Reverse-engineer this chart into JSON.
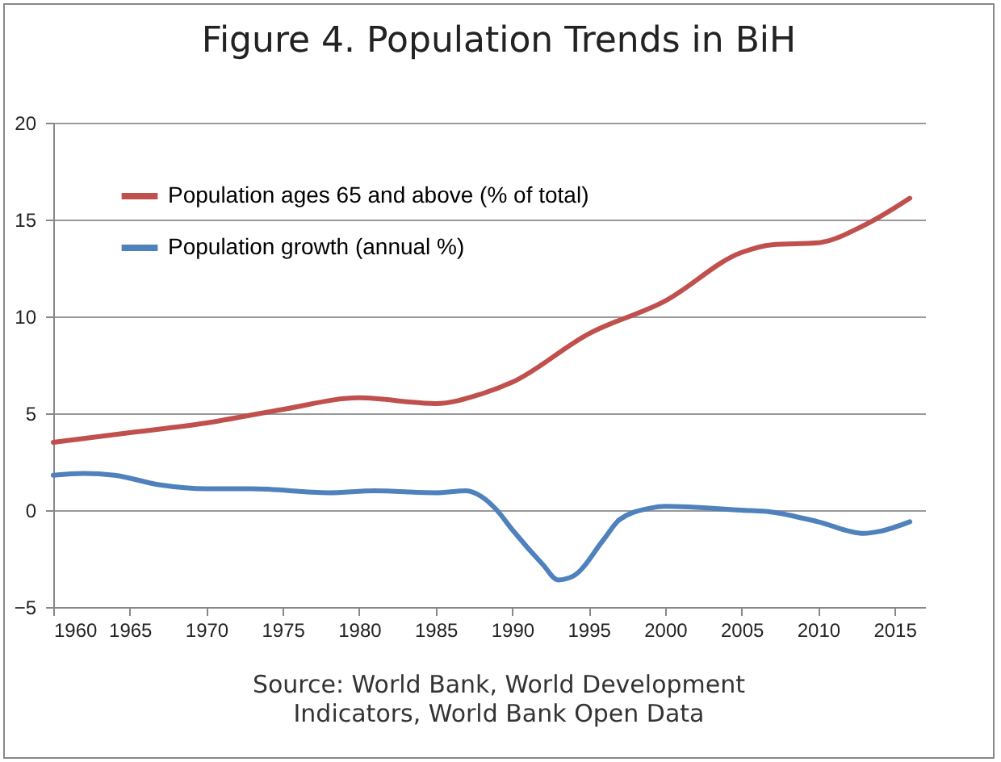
{
  "chart_data": {
    "type": "line",
    "title": "Figure 4. Population Trends in BiH",
    "annotations": [
      "Source: World Bank, World Development Indicators, World Bank Open Data"
    ],
    "xlim": [
      1960,
      2017
    ],
    "xticks": [
      1960,
      1965,
      1970,
      1975,
      1980,
      1985,
      1990,
      1995,
      2000,
      2005,
      2010,
      2015
    ],
    "ylim": [
      -5,
      20
    ],
    "yticks": [
      -5,
      0,
      5,
      10,
      15,
      20
    ],
    "grid": "y",
    "legend": "top left",
    "marker": "none",
    "line_style": "solid",
    "series": [
      {
        "name": "Population ages 65 and above (% of total)",
        "color": "#c0504d",
        "x": [
          1960,
          1965,
          1970,
          1975,
          1980,
          1985,
          1988,
          1990,
          1995,
          2000,
          2005,
          2007,
          2010,
          2013,
          2016
        ],
        "values": [
          3.5,
          4.0,
          4.5,
          5.2,
          5.8,
          5.5,
          6.0,
          6.6,
          9.1,
          10.8,
          13.3,
          13.7,
          13.8,
          14.7,
          16.1
        ]
      },
      {
        "name": "Population growth (annual %)",
        "color": "#4f81bd",
        "x": [
          1960,
          1962,
          1964,
          1967,
          1970,
          1973,
          1978,
          1981,
          1985,
          1987,
          1988,
          1989,
          1990,
          1992,
          1993,
          1994,
          1996,
          1997,
          1999,
          2000,
          2005,
          2007,
          2010,
          2013,
          2014,
          2016
        ],
        "values": [
          1.8,
          1.9,
          1.8,
          1.3,
          1.1,
          1.1,
          0.9,
          1.0,
          0.9,
          1.0,
          0.7,
          0.0,
          -1.0,
          -2.8,
          -3.6,
          -3.4,
          -1.5,
          -0.5,
          0.1,
          0.2,
          0.0,
          -0.1,
          -0.6,
          -1.2,
          -1.1,
          -0.6
        ]
      }
    ]
  }
}
